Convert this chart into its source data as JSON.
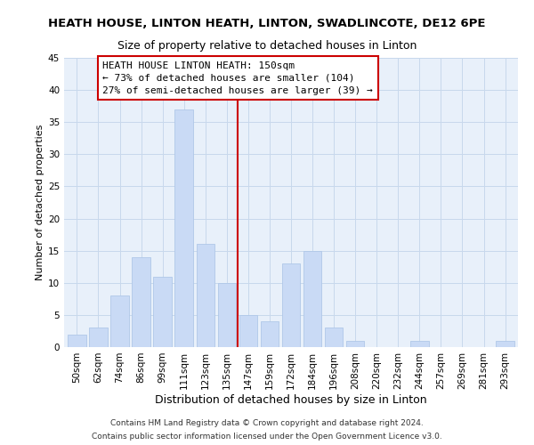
{
  "title": "HEATH HOUSE, LINTON HEATH, LINTON, SWADLINCOTE, DE12 6PE",
  "subtitle": "Size of property relative to detached houses in Linton",
  "xlabel": "Distribution of detached houses by size in Linton",
  "ylabel": "Number of detached properties",
  "bar_labels": [
    "50sqm",
    "62sqm",
    "74sqm",
    "86sqm",
    "99sqm",
    "111sqm",
    "123sqm",
    "135sqm",
    "147sqm",
    "159sqm",
    "172sqm",
    "184sqm",
    "196sqm",
    "208sqm",
    "220sqm",
    "232sqm",
    "244sqm",
    "257sqm",
    "269sqm",
    "281sqm",
    "293sqm"
  ],
  "bar_values": [
    2,
    3,
    8,
    14,
    11,
    37,
    16,
    10,
    5,
    4,
    13,
    15,
    3,
    1,
    0,
    0,
    1,
    0,
    0,
    0,
    1
  ],
  "bar_color": "#c9daf5",
  "bar_edge_color": "#b0c8e8",
  "vline_x_index": 8,
  "vline_color": "#cc0000",
  "ylim": [
    0,
    45
  ],
  "yticks": [
    0,
    5,
    10,
    15,
    20,
    25,
    30,
    35,
    40,
    45
  ],
  "annotation_title": "HEATH HOUSE LINTON HEATH: 150sqm",
  "annotation_line1": "← 73% of detached houses are smaller (104)",
  "annotation_line2": "27% of semi-detached houses are larger (39) →",
  "annotation_box_color": "#ffffff",
  "annotation_box_edge": "#cc0000",
  "footer1": "Contains HM Land Registry data © Crown copyright and database right 2024.",
  "footer2": "Contains public sector information licensed under the Open Government Licence v3.0.",
  "background_color": "#ffffff",
  "plot_bg_color": "#e8f0fa",
  "grid_color": "#c8d8ec",
  "title_fontsize": 9.5,
  "subtitle_fontsize": 9,
  "ylabel_fontsize": 8,
  "xlabel_fontsize": 9,
  "tick_fontsize": 7.5,
  "annotation_fontsize": 8,
  "footer_fontsize": 6.5
}
